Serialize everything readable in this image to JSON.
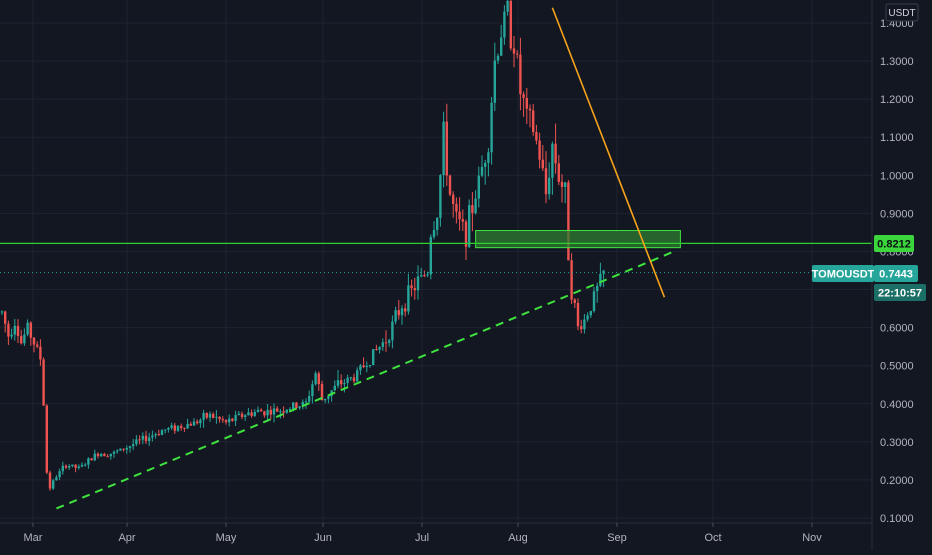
{
  "chart_data": {
    "type": "candlestick",
    "symbol": "TOMOUSDT",
    "currency": "USDT",
    "last_price": "0.7443",
    "countdown": "22:10:57",
    "horizontal_level": "0.8212",
    "y_axis": {
      "ticks": [
        "0.1000",
        "0.2000",
        "0.3000",
        "0.4000",
        "0.5000",
        "0.6000",
        "0.7000",
        "0.8000",
        "0.9000",
        "1.0000",
        "1.1000",
        "1.2000",
        "1.3000",
        "1.4000"
      ],
      "range": [
        0.085,
        1.44
      ]
    },
    "x_axis": {
      "ticks": [
        "Mar",
        "Apr",
        "May",
        "Jun",
        "Jul",
        "Aug",
        "Sep",
        "Oct",
        "Nov"
      ]
    },
    "grid": true,
    "colors": {
      "background": "#131722",
      "grid": "#1f2331",
      "up": "#26a69a",
      "down": "#ef5350",
      "support_line": "#3ee33e",
      "resistance_trendline": "#f7a21b",
      "level_line": "#2fd12f",
      "zone_fill": "#2e7d32",
      "last_price_tag": "#26a69a",
      "level_tag": "#3bd63b"
    },
    "annotations": {
      "support_trendline": {
        "from": [
          "Mar 13",
          0.125
        ],
        "to": [
          "Sep 22",
          0.8
        ]
      },
      "resistance_trendline": {
        "from": [
          "Aug 15",
          1.44
        ],
        "to": [
          "Sep 19",
          0.68
        ]
      },
      "zone": {
        "from": "Jul 22",
        "to": "Sep 24",
        "low": 0.81,
        "high": 0.855
      }
    },
    "price_path": [
      [
        0,
        0.64
      ],
      [
        2,
        0.58
      ],
      [
        4,
        0.62
      ],
      [
        6,
        0.56
      ],
      [
        8,
        0.6
      ],
      [
        10,
        0.56
      ],
      [
        12,
        0.52
      ],
      [
        13,
        0.4
      ],
      [
        14,
        0.22
      ],
      [
        15,
        0.18
      ],
      [
        17,
        0.21
      ],
      [
        20,
        0.24
      ],
      [
        24,
        0.23
      ],
      [
        27,
        0.25
      ],
      [
        30,
        0.27
      ],
      [
        35,
        0.27
      ],
      [
        40,
        0.29
      ],
      [
        45,
        0.31
      ],
      [
        50,
        0.33
      ],
      [
        55,
        0.34
      ],
      [
        60,
        0.35
      ],
      [
        65,
        0.37
      ],
      [
        70,
        0.35
      ],
      [
        75,
        0.37
      ],
      [
        80,
        0.38
      ],
      [
        85,
        0.38
      ],
      [
        90,
        0.39
      ],
      [
        95,
        0.4
      ],
      [
        98,
        0.48
      ],
      [
        100,
        0.41
      ],
      [
        105,
        0.45
      ],
      [
        110,
        0.47
      ],
      [
        115,
        0.52
      ],
      [
        120,
        0.57
      ],
      [
        125,
        0.66
      ],
      [
        130,
        0.72
      ],
      [
        133,
        0.75
      ],
      [
        134,
        0.85
      ],
      [
        136,
        0.9
      ],
      [
        138,
        1.1
      ],
      [
        140,
        0.95
      ],
      [
        142,
        0.88
      ],
      [
        145,
        0.85
      ],
      [
        148,
        0.95
      ],
      [
        150,
        1.02
      ],
      [
        152,
        1.1
      ],
      [
        154,
        1.3
      ],
      [
        156,
        1.38
      ],
      [
        158,
        1.42
      ],
      [
        160,
        1.35
      ],
      [
        162,
        1.22
      ],
      [
        164,
        1.15
      ],
      [
        166,
        1.12
      ],
      [
        168,
        1.05
      ],
      [
        170,
        0.95
      ],
      [
        172,
        1.08
      ],
      [
        174,
        1.0
      ],
      [
        176,
        0.95
      ],
      [
        177,
        0.8
      ],
      [
        178,
        0.7
      ],
      [
        179,
        0.65
      ],
      [
        180,
        0.6
      ],
      [
        182,
        0.62
      ],
      [
        184,
        0.66
      ],
      [
        186,
        0.7
      ],
      [
        188,
        0.74
      ]
    ]
  }
}
